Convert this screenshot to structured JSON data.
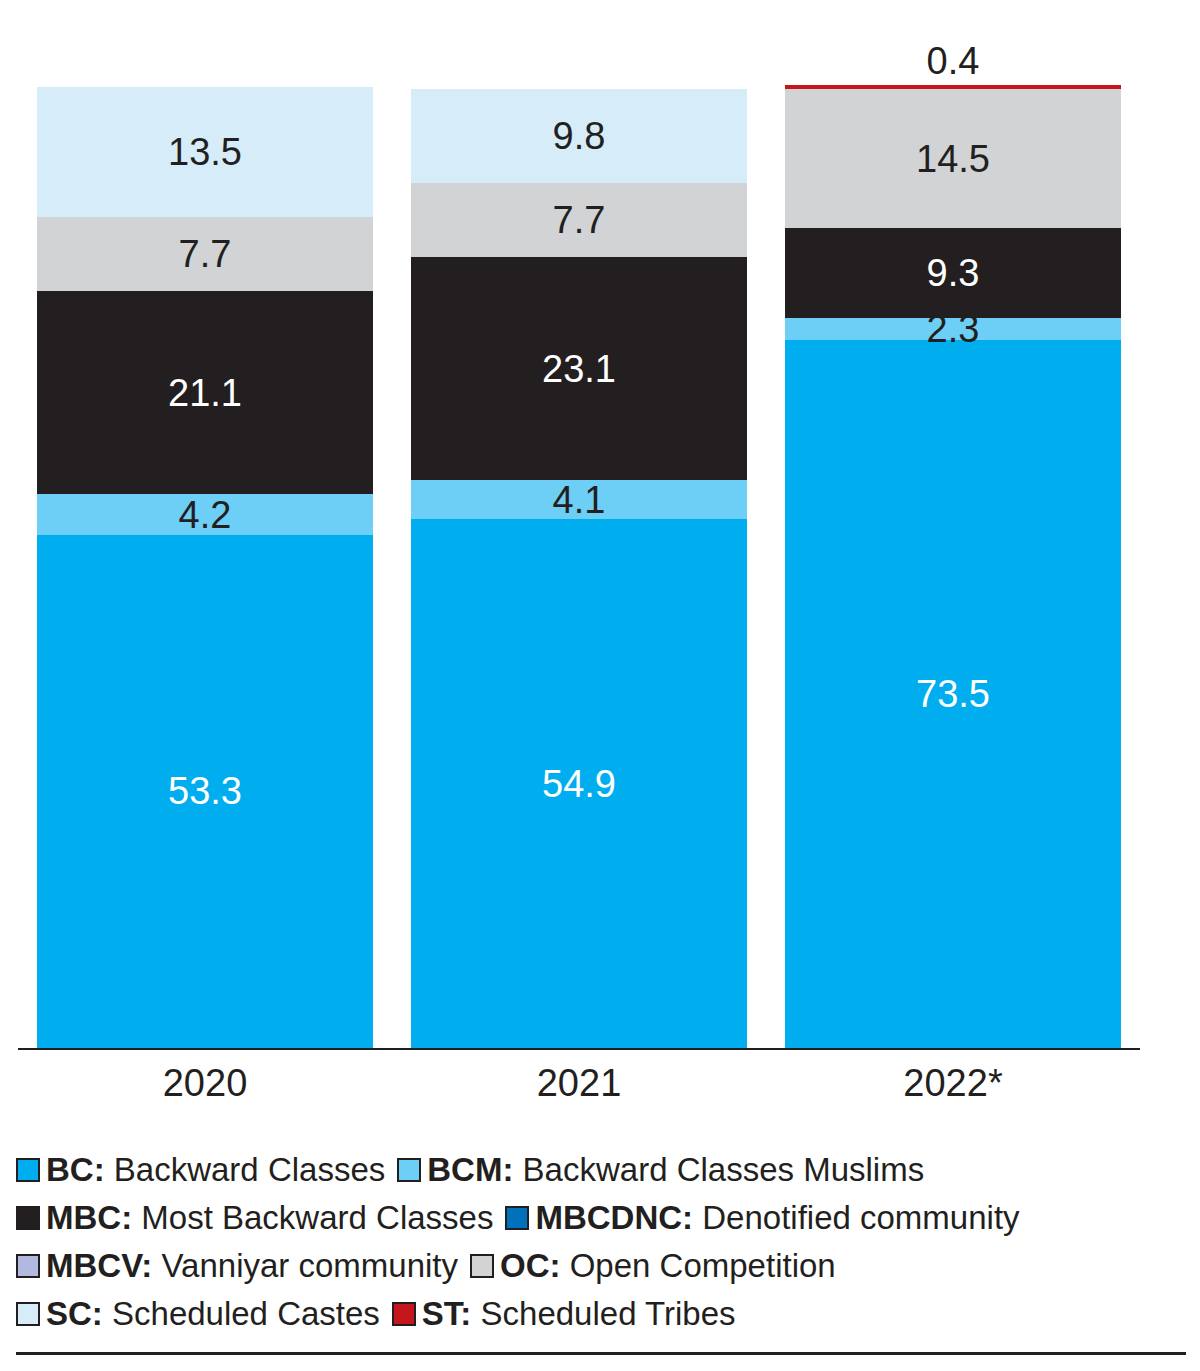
{
  "chart_data": {
    "type": "bar",
    "stacked": true,
    "data_labels": true,
    "tick_labels": "x",
    "ylim": [
      0,
      100
    ],
    "categories": [
      "2020",
      "2021",
      "2022*"
    ],
    "series": [
      {
        "name": "BC: Backward Classes",
        "color": "#00aeef",
        "values": [
          53.3,
          54.9,
          73.5
        ]
      },
      {
        "name": "BCM: Backward Classes Muslims",
        "color": "#6dcff6",
        "values": [
          4.2,
          4.1,
          2.3
        ]
      },
      {
        "name": "MBC: Most Backward Classes",
        "color": "#231f20",
        "values": [
          21.1,
          23.1,
          9.3
        ]
      },
      {
        "name": "MBCDNC: Denotified community",
        "color": "#0072bc",
        "values": [
          null,
          null,
          null
        ]
      },
      {
        "name": "MBCV: Vanniyar community",
        "color": "#b3b8e0",
        "values": [
          null,
          null,
          null
        ]
      },
      {
        "name": "OC: Open Competition",
        "color": "#d1d3d4",
        "values": [
          7.7,
          7.7,
          14.5
        ]
      },
      {
        "name": "SC: Scheduled Castes",
        "color": "#d6ecf9",
        "values": [
          13.5,
          9.8,
          null
        ]
      },
      {
        "name": "ST: Scheduled Tribes",
        "color": "#c4161c",
        "values": [
          null,
          null,
          0.4
        ]
      }
    ]
  }
}
